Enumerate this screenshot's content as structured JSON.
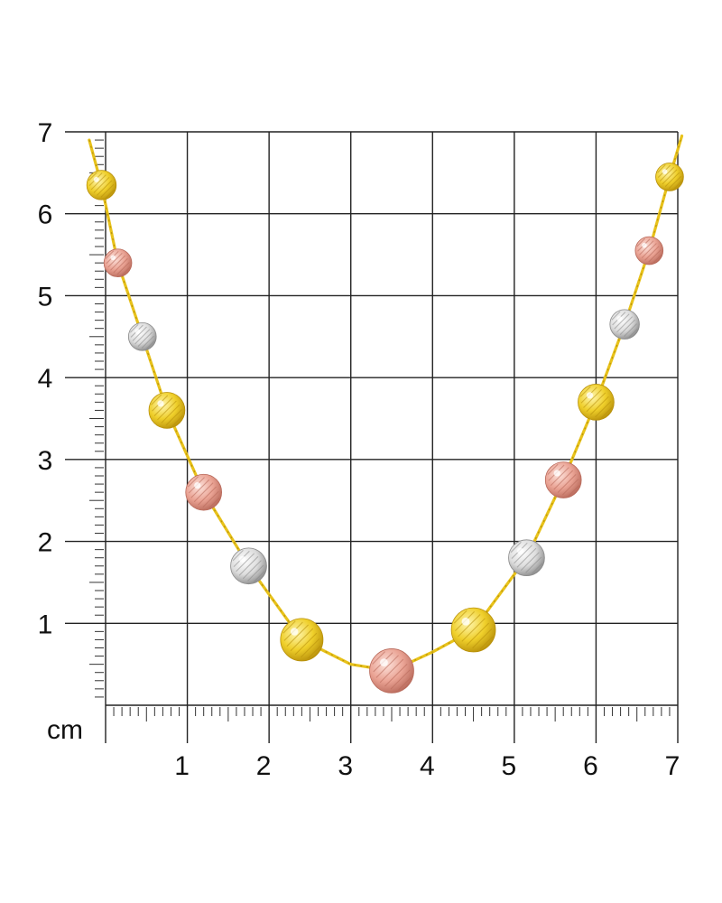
{
  "measurement_grid": {
    "unit": "cm",
    "x_ticks": [
      "1",
      "2",
      "3",
      "4",
      "5",
      "6",
      "7"
    ],
    "y_ticks": [
      "1",
      "2",
      "3",
      "4",
      "5",
      "6",
      "7"
    ],
    "range": [
      0,
      7
    ],
    "subdivisions_per_cm": 10
  },
  "necklace": {
    "chain_color": "#e8c21a",
    "bead_colors": {
      "yellow": "#efcf2a",
      "rose": "#eaa394",
      "white": "#dcdcdc"
    },
    "beads": [
      {
        "x": -0.05,
        "y": 6.35,
        "r": 0.18,
        "tone": "yellow"
      },
      {
        "x": 0.15,
        "y": 5.4,
        "r": 0.17,
        "tone": "rose"
      },
      {
        "x": 0.45,
        "y": 4.5,
        "r": 0.17,
        "tone": "white"
      },
      {
        "x": 0.75,
        "y": 3.6,
        "r": 0.22,
        "tone": "yellow"
      },
      {
        "x": 1.2,
        "y": 2.6,
        "r": 0.22,
        "tone": "rose"
      },
      {
        "x": 1.75,
        "y": 1.7,
        "r": 0.22,
        "tone": "white"
      },
      {
        "x": 2.4,
        "y": 0.8,
        "r": 0.26,
        "tone": "yellow"
      },
      {
        "x": 3.5,
        "y": 0.42,
        "r": 0.27,
        "tone": "rose"
      },
      {
        "x": 4.5,
        "y": 0.92,
        "r": 0.27,
        "tone": "yellow"
      },
      {
        "x": 5.15,
        "y": 1.8,
        "r": 0.22,
        "tone": "white"
      },
      {
        "x": 5.6,
        "y": 2.75,
        "r": 0.22,
        "tone": "rose"
      },
      {
        "x": 6.0,
        "y": 3.7,
        "r": 0.22,
        "tone": "yellow"
      },
      {
        "x": 6.35,
        "y": 4.65,
        "r": 0.18,
        "tone": "white"
      },
      {
        "x": 6.65,
        "y": 5.55,
        "r": 0.17,
        "tone": "rose"
      },
      {
        "x": 6.9,
        "y": 6.45,
        "r": 0.17,
        "tone": "yellow"
      }
    ],
    "chain_path": [
      [
        -0.2,
        6.9
      ],
      [
        -0.05,
        6.35
      ],
      [
        0.15,
        5.4
      ],
      [
        0.45,
        4.5
      ],
      [
        0.75,
        3.6
      ],
      [
        1.2,
        2.6
      ],
      [
        1.75,
        1.7
      ],
      [
        2.4,
        0.8
      ],
      [
        3.0,
        0.5
      ],
      [
        3.5,
        0.42
      ],
      [
        4.0,
        0.65
      ],
      [
        4.5,
        0.92
      ],
      [
        5.15,
        1.8
      ],
      [
        5.6,
        2.75
      ],
      [
        6.0,
        3.7
      ],
      [
        6.35,
        4.65
      ],
      [
        6.65,
        5.55
      ],
      [
        6.9,
        6.45
      ],
      [
        7.05,
        6.95
      ]
    ]
  }
}
